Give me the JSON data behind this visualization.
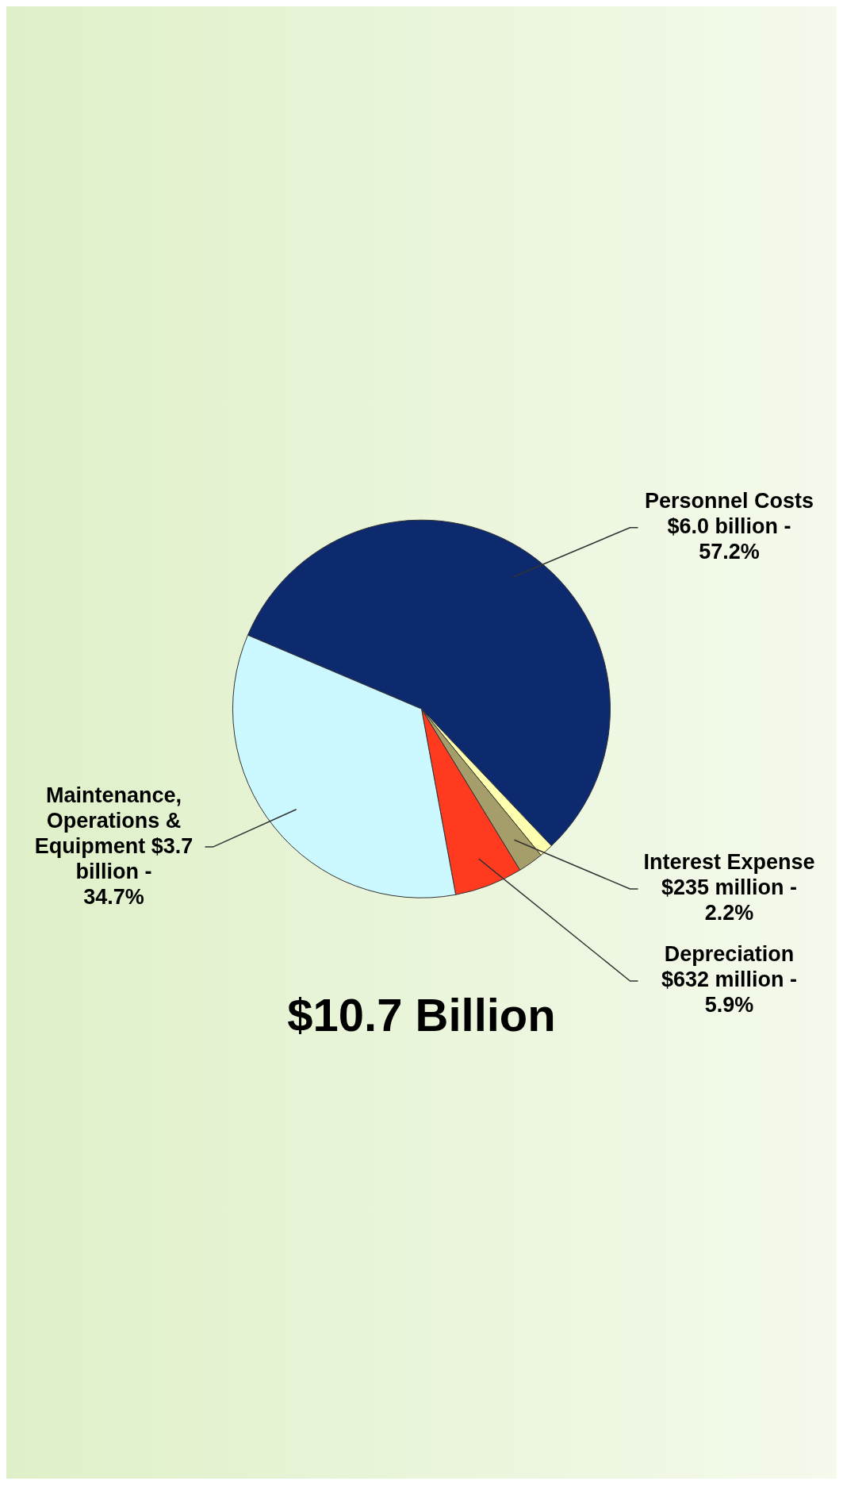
{
  "chart_data": {
    "type": "pie",
    "title": "$10.7 Billion",
    "categories": [
      "Personnel Costs $6.0 billion -",
      null,
      "Interest Expense $235 million -",
      "Depreciation $632 million -",
      "Maintenance, Operations & Equipment $3.7 billion -"
    ],
    "values": [
      57.2,
      1.2,
      2.2,
      5.9,
      34.7
    ],
    "value_labels": [
      "57.2%",
      null,
      "2.2%",
      "5.9%",
      "34.7%"
    ],
    "colors": [
      "#0d2a6e",
      "#ffffb0",
      "#a59d6a",
      "#ff3a1f",
      "#ccf8ff"
    ],
    "legend": false
  }
}
